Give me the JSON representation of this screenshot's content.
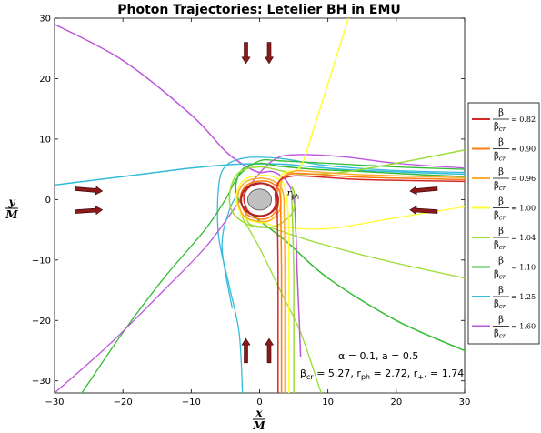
{
  "chart_data": {
    "type": "line",
    "title": "Photon Trajectories: Letelier BH in EMU",
    "xlabel": {
      "num": "x",
      "den": "M"
    },
    "ylabel": {
      "num": "y",
      "den": "M"
    },
    "xlim": [
      -30,
      30
    ],
    "ylim": [
      -32,
      30
    ],
    "xticks": [
      -30,
      -20,
      -10,
      0,
      10,
      20,
      30
    ],
    "yticks": [
      -30,
      -20,
      -10,
      0,
      10,
      20,
      30
    ],
    "xtick_labels": [
      "−30",
      "−20",
      "−10",
      "0",
      "10",
      "20",
      "30"
    ],
    "ytick_labels": [
      "−30",
      "−20",
      "−10",
      "0",
      "10",
      "20",
      "30"
    ],
    "grid": false,
    "legend_position": "right",
    "legend_symbol": {
      "num": "β",
      "den": "β",
      "den_sub": "cr"
    },
    "series": [
      {
        "ratio_label": "= 0.82",
        "color": "#d62728",
        "points": [
          [
            30,
            3
          ],
          [
            15,
            3.3
          ],
          [
            8,
            3.8
          ],
          [
            5,
            3.9
          ],
          [
            3,
            3.2
          ],
          [
            2.3,
            1.2
          ],
          [
            2.3,
            -1
          ],
          [
            1.3,
            -2.4
          ],
          [
            0,
            -2.7
          ],
          [
            -1.6,
            -2
          ],
          [
            -2.3,
            0.4
          ],
          [
            -1.3,
            2.2
          ],
          [
            1,
            2.6
          ],
          [
            2.4,
            1.2
          ],
          [
            2.6,
            -3
          ],
          [
            2.7,
            -12
          ],
          [
            2.7,
            -22
          ],
          [
            2.7,
            -32
          ]
        ]
      },
      {
        "ratio_label": "= 0.90",
        "color": "#ff7f0e",
        "points": [
          [
            30,
            3.3
          ],
          [
            15,
            3.7
          ],
          [
            8,
            4.2
          ],
          [
            5,
            4.3
          ],
          [
            3.2,
            3.5
          ],
          [
            2.6,
            1.4
          ],
          [
            2.7,
            -1.2
          ],
          [
            1.5,
            -2.9
          ],
          [
            0,
            -3.2
          ],
          [
            -2,
            -2.3
          ],
          [
            -2.8,
            0.5
          ],
          [
            -1.6,
            2.6
          ],
          [
            1.1,
            3
          ],
          [
            2.9,
            1.4
          ],
          [
            3.1,
            -3
          ],
          [
            3.2,
            -12
          ],
          [
            3.2,
            -22
          ],
          [
            3.2,
            -32
          ]
        ]
      },
      {
        "ratio_label": "= 0.96",
        "color": "#ffaa33",
        "points": [
          [
            30,
            3.6
          ],
          [
            15,
            4.1
          ],
          [
            8,
            4.6
          ],
          [
            5.2,
            4.7
          ],
          [
            3.5,
            3.8
          ],
          [
            3,
            1.6
          ],
          [
            3,
            -1.5
          ],
          [
            1.7,
            -3.3
          ],
          [
            0,
            -3.6
          ],
          [
            -2.3,
            -2.7
          ],
          [
            -3.2,
            0.5
          ],
          [
            -1.9,
            3
          ],
          [
            1.2,
            3.4
          ],
          [
            3.3,
            1.6
          ],
          [
            3.6,
            -3
          ],
          [
            3.7,
            -12
          ],
          [
            3.7,
            -22
          ],
          [
            3.7,
            -32
          ]
        ]
      },
      {
        "ratio_label": "= 1.00",
        "color": "#ffff33",
        "points": [
          [
            13,
            30
          ],
          [
            8,
            12
          ],
          [
            6,
            5.5
          ],
          [
            4,
            4.6
          ],
          [
            3,
            3.8
          ],
          [
            3.2,
            2
          ],
          [
            3,
            -1.5
          ],
          [
            1.7,
            -3.4
          ],
          [
            0,
            -3.8
          ],
          [
            -2.4,
            -2.8
          ],
          [
            -3.4,
            0.4
          ],
          [
            -2.2,
            3.3
          ],
          [
            1,
            4
          ],
          [
            3.2,
            3
          ],
          [
            3.8,
            1.5
          ],
          [
            4.2,
            -3
          ],
          [
            4.3,
            -12
          ],
          [
            4.3,
            -22
          ],
          [
            4.3,
            -32
          ]
        ]
      },
      {
        "ratio_label": "= 1.04",
        "color": "#99dd33",
        "points": [
          [
            30,
            8.2
          ],
          [
            20,
            6
          ],
          [
            12,
            4.5
          ],
          [
            6,
            4.2
          ],
          [
            3,
            4.8
          ],
          [
            0,
            5.4
          ],
          [
            -3,
            4.5
          ],
          [
            -4.3,
            1.5
          ],
          [
            -4,
            -2
          ],
          [
            -1.5,
            -4.2
          ],
          [
            2,
            -4.5
          ],
          [
            4.6,
            -2.5
          ],
          [
            5.2,
            0
          ],
          [
            4.7,
            2
          ],
          [
            4.8,
            -3
          ],
          [
            5,
            -12
          ],
          [
            5,
            -22
          ],
          [
            5,
            -32
          ]
        ]
      },
      {
        "ratio_label": "= 1.10",
        "color": "#33bb33",
        "points": [
          [
            30,
            -25
          ],
          [
            20,
            -20
          ],
          [
            10,
            -13
          ],
          [
            4,
            -7
          ],
          [
            0,
            -3.5
          ],
          [
            -2.5,
            -1
          ],
          [
            -3.5,
            2
          ],
          [
            -2.5,
            5
          ],
          [
            0,
            6
          ],
          [
            3,
            5.5
          ],
          [
            8,
            5
          ],
          [
            14,
            4.7
          ],
          [
            22,
            4.2
          ],
          [
            30,
            3.8
          ]
        ]
      },
      {
        "ratio_label": "= 1.25",
        "color": "#33bbdd",
        "points": [
          [
            -30,
            2.4
          ],
          [
            -20,
            3.8
          ],
          [
            -10,
            5.2
          ],
          [
            -4,
            5.8
          ],
          [
            0,
            5.9
          ],
          [
            4,
            5.8
          ],
          [
            12,
            5
          ],
          [
            22,
            4.5
          ],
          [
            30,
            4.2
          ]
        ]
      },
      {
        "ratio_label": "= 1.60",
        "color": "#bb55dd",
        "points": [
          [
            -30,
            29
          ],
          [
            -20,
            23
          ],
          [
            -10,
            14
          ],
          [
            -5,
            8
          ],
          [
            -2,
            5.5
          ],
          [
            0,
            4.5
          ],
          [
            2,
            4.6
          ],
          [
            4,
            3
          ],
          [
            5,
            0
          ],
          [
            5.3,
            -5
          ],
          [
            5.5,
            -12
          ],
          [
            5.8,
            -20
          ],
          [
            6,
            -26
          ]
        ]
      }
    ],
    "extra_curves": [
      {
        "color": "#33bbdd",
        "points": [
          [
            30,
            4.5
          ],
          [
            20,
            4.8
          ],
          [
            10,
            5.6
          ],
          [
            3,
            6.8
          ],
          [
            -2,
            6.9
          ],
          [
            -5,
            5.5
          ],
          [
            -6,
            2
          ],
          [
            -6,
            -6
          ],
          [
            -4.5,
            -14
          ],
          [
            -3,
            -22
          ],
          [
            -2.5,
            -32
          ]
        ]
      },
      {
        "color": "#33bb33",
        "points": [
          [
            -26,
            -32
          ],
          [
            -20,
            -22
          ],
          [
            -14,
            -13
          ],
          [
            -8,
            -5
          ],
          [
            -5,
            0
          ],
          [
            -3,
            4
          ],
          [
            0,
            6.4
          ],
          [
            3,
            6.4
          ],
          [
            10,
            6
          ],
          [
            20,
            5.4
          ],
          [
            30,
            5
          ]
        ]
      },
      {
        "color": "#bb55dd",
        "points": [
          [
            -30,
            -32
          ],
          [
            -22,
            -24
          ],
          [
            -14,
            -15
          ],
          [
            -8,
            -8
          ],
          [
            -4,
            -2
          ],
          [
            -1,
            3
          ],
          [
            2,
            6.5
          ],
          [
            5,
            7.4
          ],
          [
            12,
            7.1
          ],
          [
            20,
            6
          ],
          [
            30,
            5.2
          ]
        ]
      },
      {
        "color": "#99dd33",
        "points": [
          [
            30,
            -13
          ],
          [
            18,
            -10
          ],
          [
            8,
            -7
          ],
          [
            2,
            -4.8
          ],
          [
            -1.5,
            -4
          ],
          [
            -2,
            -1
          ]
        ]
      },
      {
        "color": "#99dd33",
        "points": [
          [
            -3,
            -1
          ],
          [
            -2.5,
            -3
          ],
          [
            0,
            -8
          ],
          [
            3,
            -15
          ],
          [
            6,
            -22
          ],
          [
            9,
            -32
          ]
        ]
      },
      {
        "color": "#33bbdd",
        "points": [
          [
            -3.2,
            1
          ],
          [
            -4.5,
            -2
          ],
          [
            -5.5,
            -8
          ],
          [
            -4,
            -18
          ]
        ]
      },
      {
        "color": "#ffff33",
        "points": [
          [
            30,
            -1.2
          ],
          [
            20,
            -3
          ],
          [
            10,
            -4.8
          ],
          [
            3,
            -4.5
          ],
          [
            0,
            -3.6
          ]
        ]
      }
    ],
    "arrows": [
      {
        "from": [
          -27,
          1.8
        ],
        "to": [
          -23,
          1.4
        ]
      },
      {
        "from": [
          -27,
          -2
        ],
        "to": [
          -23,
          -1.7
        ]
      },
      {
        "from": [
          26,
          1.8
        ],
        "to": [
          22,
          1.4
        ]
      },
      {
        "from": [
          26,
          -2
        ],
        "to": [
          22,
          -1.7
        ]
      },
      {
        "from": [
          -2,
          26
        ],
        "to": [
          -2,
          22.5
        ]
      },
      {
        "from": [
          1.4,
          26
        ],
        "to": [
          1.4,
          22.5
        ]
      },
      {
        "from": [
          -2,
          -27
        ],
        "to": [
          -2,
          -23
        ]
      },
      {
        "from": [
          1.4,
          -27
        ],
        "to": [
          1.4,
          -23
        ]
      }
    ],
    "horizon": {
      "center": [
        0,
        0
      ],
      "radius": 1.74
    },
    "photon_sphere_radius": 2.72,
    "rph_label": {
      "main": "r",
      "sub": "ph",
      "at": [
        4,
        0.6
      ]
    },
    "annotations": {
      "line1": "α = 0.1,   a = 0.5",
      "line2_parts": [
        "β",
        "cr",
        " = 5.27,   r",
        "ph",
        " = 2.72,   r",
        "+",
        ". = 1.74"
      ]
    }
  }
}
